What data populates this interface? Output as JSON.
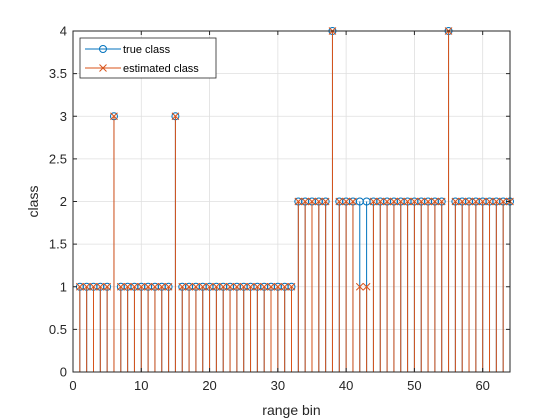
{
  "chart_data": {
    "type": "stem",
    "xlabel": "range bin",
    "ylabel": "class",
    "xlim": [
      0,
      64
    ],
    "ylim": [
      0,
      4
    ],
    "xticks": [
      0,
      10,
      20,
      30,
      40,
      50,
      60
    ],
    "yticks": [
      0,
      0.5,
      1,
      1.5,
      2,
      2.5,
      3,
      3.5,
      4
    ],
    "xtick_labels": [
      "0",
      "10",
      "20",
      "30",
      "40",
      "50",
      "60"
    ],
    "ytick_labels": [
      "0",
      "0.5",
      "1",
      "1.5",
      "2",
      "2.5",
      "3",
      "3.5",
      "4"
    ],
    "grid": true,
    "legend_position": "top-left",
    "x": [
      1,
      2,
      3,
      4,
      5,
      6,
      7,
      8,
      9,
      10,
      11,
      12,
      13,
      14,
      15,
      16,
      17,
      18,
      19,
      20,
      21,
      22,
      23,
      24,
      25,
      26,
      27,
      28,
      29,
      30,
      31,
      32,
      33,
      34,
      35,
      36,
      37,
      38,
      39,
      40,
      41,
      42,
      43,
      44,
      45,
      46,
      47,
      48,
      49,
      50,
      51,
      52,
      53,
      54,
      55,
      56,
      57,
      58,
      59,
      60,
      61,
      62,
      63,
      64
    ],
    "series": [
      {
        "name": "true class",
        "color": "#0072bd",
        "marker": "o",
        "values": [
          1,
          1,
          1,
          1,
          1,
          3,
          1,
          1,
          1,
          1,
          1,
          1,
          1,
          1,
          3,
          1,
          1,
          1,
          1,
          1,
          1,
          1,
          1,
          1,
          1,
          1,
          1,
          1,
          1,
          1,
          1,
          1,
          2,
          2,
          2,
          2,
          2,
          4,
          2,
          2,
          2,
          2,
          2,
          2,
          2,
          2,
          2,
          2,
          2,
          2,
          2,
          2,
          2,
          2,
          4,
          2,
          2,
          2,
          2,
          2,
          2,
          2,
          2,
          2
        ]
      },
      {
        "name": "estimated class",
        "color": "#d95319",
        "marker": "x",
        "values": [
          1,
          1,
          1,
          1,
          1,
          3,
          1,
          1,
          1,
          1,
          1,
          1,
          1,
          1,
          3,
          1,
          1,
          1,
          1,
          1,
          1,
          1,
          1,
          1,
          1,
          1,
          1,
          1,
          1,
          1,
          1,
          1,
          2,
          2,
          2,
          2,
          2,
          4,
          2,
          2,
          2,
          1,
          1,
          2,
          2,
          2,
          2,
          2,
          2,
          2,
          2,
          2,
          2,
          2,
          4,
          2,
          2,
          2,
          2,
          2,
          2,
          2,
          2,
          2
        ]
      }
    ]
  }
}
